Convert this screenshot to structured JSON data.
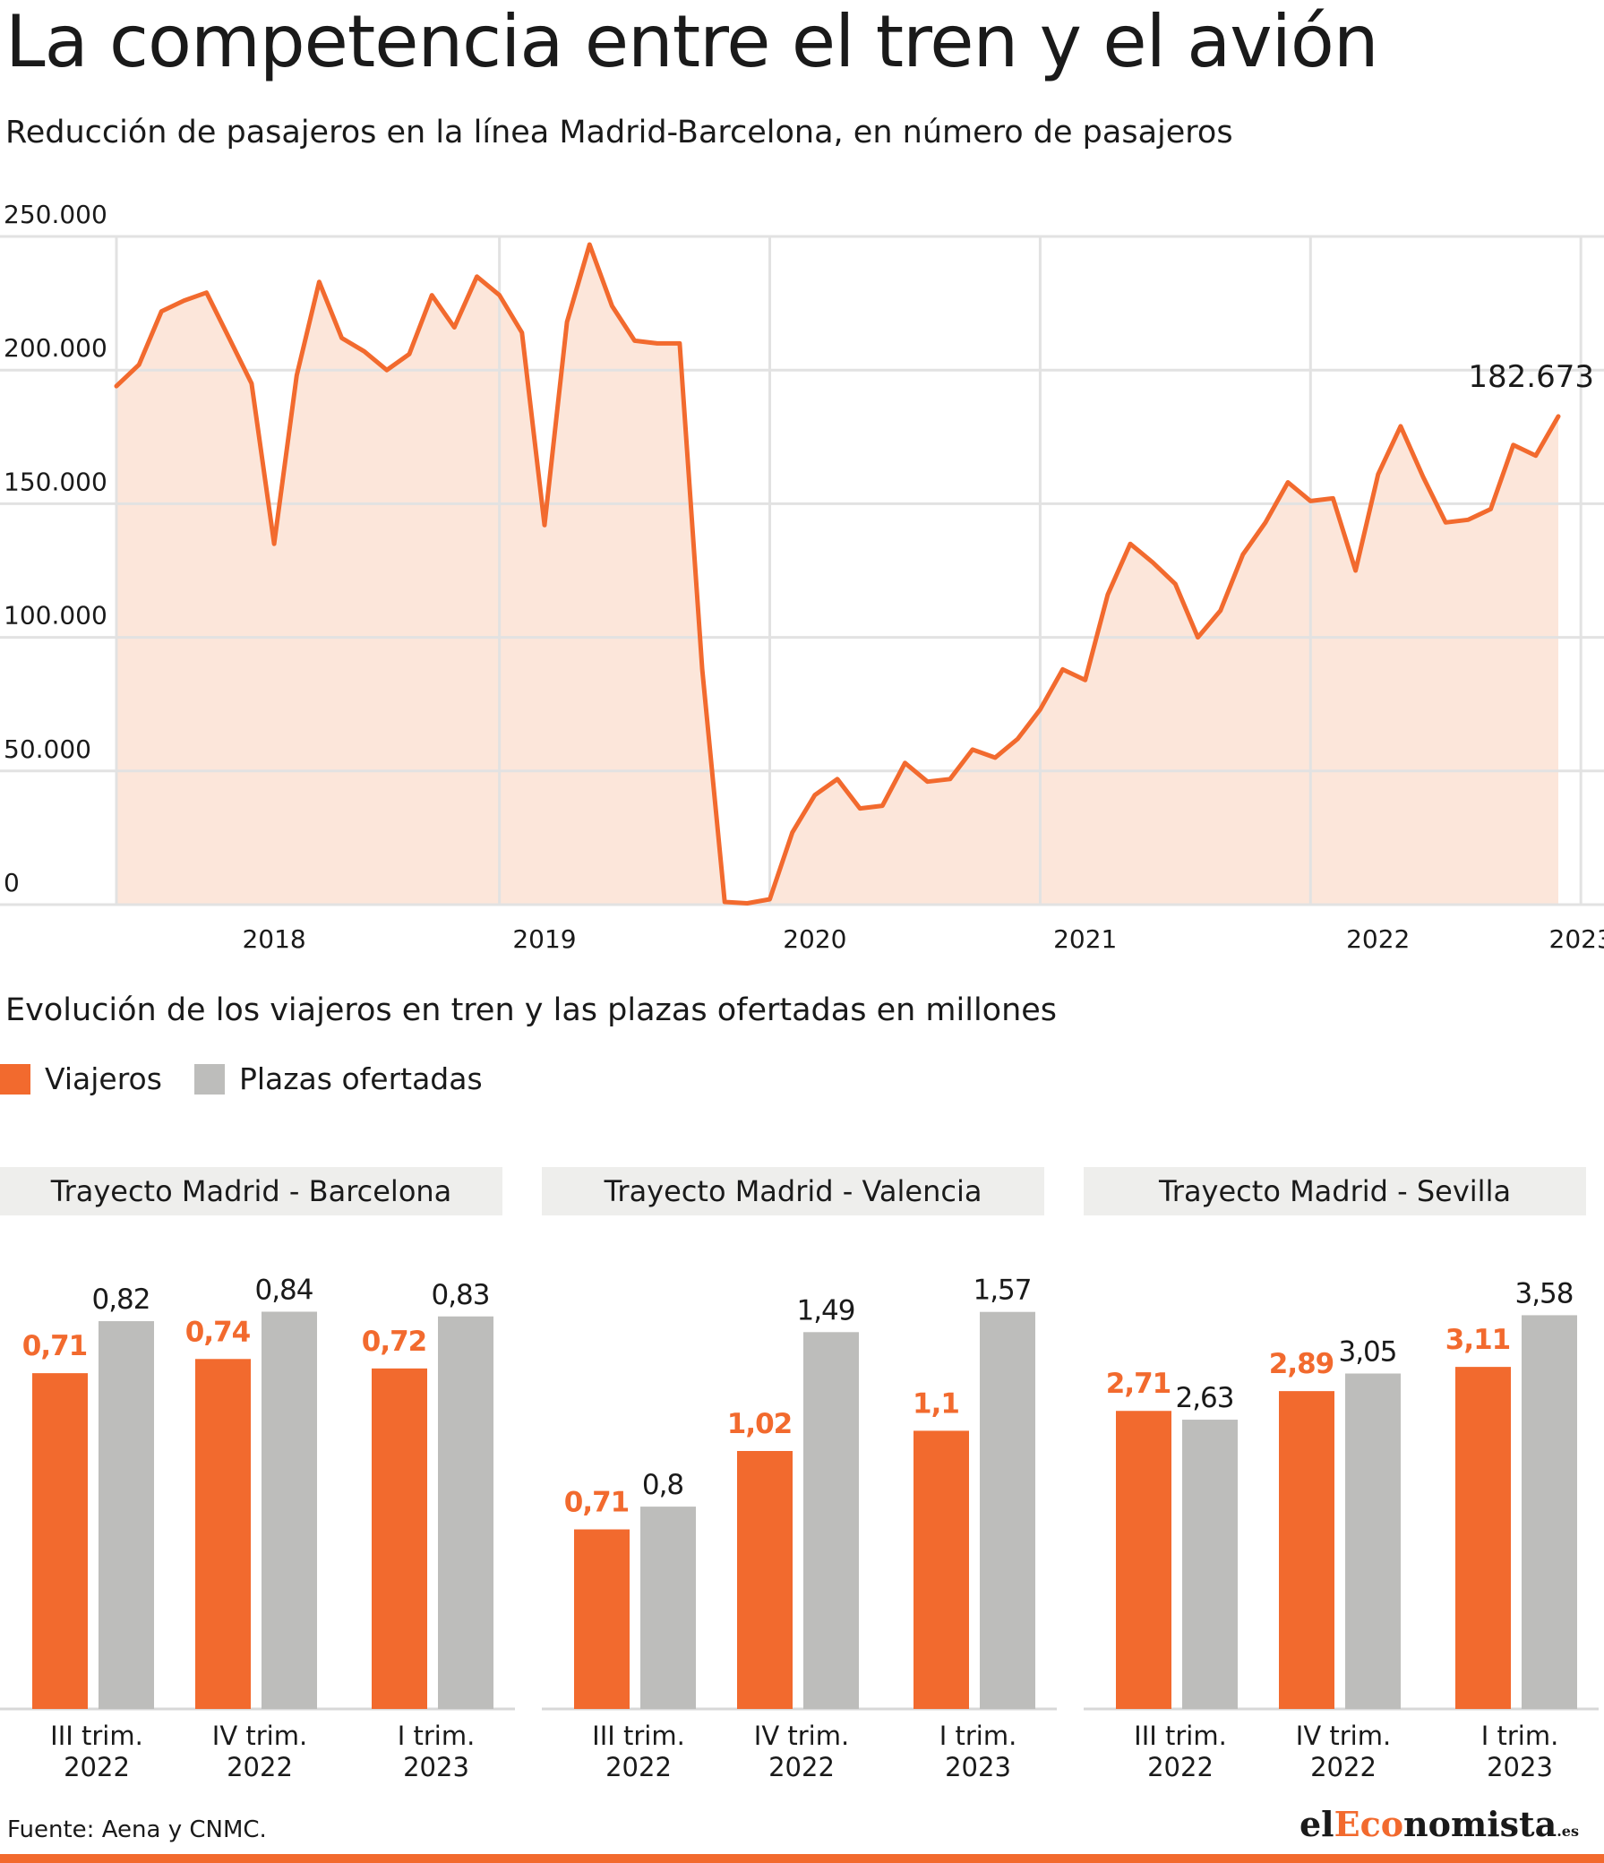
{
  "header": {
    "title": "La competencia entre el tren y el avión",
    "subtitle_line": "Reducción de pasajeros en la línea Madrid-Barcelona, en número de pasajeros",
    "subtitle_bars": "Evolución de los viajeros en tren y las plazas ofertadas en millones"
  },
  "legend": {
    "viajeros": "Viajeros",
    "plazas": "Plazas ofertadas"
  },
  "colors": {
    "orange": "#f26a2e",
    "gray": "#bdbdbb",
    "area_fill": "#fce6da"
  },
  "footer": {
    "source": "Fuente: Aena y CNMC.",
    "logo_el": "el",
    "logo_e": "E",
    "logo_co": "co",
    "logo_rest": "nomista",
    "logo_tld": ".es"
  },
  "chart_data": [
    {
      "type": "area",
      "title": "Reducción de pasajeros en la línea Madrid-Barcelona, en número de pasajeros",
      "ylim": [
        0,
        250000
      ],
      "yticks": [
        0,
        50000,
        100000,
        150000,
        200000,
        250000
      ],
      "ytick_labels": [
        "0",
        "50.000",
        "100.000",
        "150.000",
        "200.000",
        "250.000"
      ],
      "x_start": "2017-08",
      "x_labels": [
        "2018",
        "2019",
        "2020",
        "2021",
        "2022",
        "2023"
      ],
      "x_label_months": [
        "2018-03",
        "2019-03",
        "2020-03",
        "2021-03",
        "2022-04",
        "2023-01"
      ],
      "grid_months": [
        "2017-08",
        "2019-01",
        "2020-01",
        "2021-01",
        "2022-01",
        "2023-01"
      ],
      "annotation": {
        "text": "182.673",
        "value": 182673
      },
      "values": [
        194000,
        202000,
        222000,
        226000,
        229000,
        212000,
        195000,
        135000,
        198000,
        233000,
        212000,
        207000,
        200000,
        206000,
        228000,
        216000,
        235000,
        228000,
        214000,
        142000,
        218000,
        247000,
        224000,
        211000,
        210000,
        210000,
        88000,
        1000,
        500,
        2000,
        27000,
        41000,
        47000,
        36000,
        37000,
        53000,
        46000,
        47000,
        58000,
        55000,
        62000,
        73000,
        88000,
        84000,
        116000,
        135000,
        128000,
        120000,
        100000,
        110000,
        131000,
        143000,
        158000,
        151000,
        152000,
        125000,
        161000,
        179000,
        160000,
        143000,
        144000,
        148000,
        172000,
        168000,
        182673
      ]
    },
    {
      "type": "bar",
      "title": "Trayecto Madrid - Barcelona",
      "categories": [
        "III trim. 2022",
        "IV trim. 2022",
        "I trim. 2023"
      ],
      "category_lines": [
        [
          "III trim.",
          "2022"
        ],
        [
          "IV trim.",
          "2022"
        ],
        [
          "I trim.",
          "2023"
        ]
      ],
      "series": [
        {
          "name": "Viajeros",
          "values": [
            0.71,
            0.74,
            0.72
          ],
          "labels": [
            "0,71",
            "0,74",
            "0,72"
          ]
        },
        {
          "name": "Plazas ofertadas",
          "values": [
            0.82,
            0.84,
            0.83
          ],
          "labels": [
            "0,82",
            "0,84",
            "0,83"
          ]
        }
      ],
      "ylim": [
        0,
        1.0
      ]
    },
    {
      "type": "bar",
      "title": "Trayecto Madrid - Valencia",
      "categories": [
        "III trim. 2022",
        "IV trim. 2022",
        "I trim. 2023"
      ],
      "category_lines": [
        [
          "III trim.",
          "2022"
        ],
        [
          "IV trim.",
          "2022"
        ],
        [
          "I trim.",
          "2023"
        ]
      ],
      "series": [
        {
          "name": "Viajeros",
          "values": [
            0.71,
            1.02,
            1.1
          ],
          "labels": [
            "0,71",
            "1,02",
            "1,1"
          ]
        },
        {
          "name": "Plazas ofertadas",
          "values": [
            0.8,
            1.49,
            1.57
          ],
          "labels": [
            "0,8",
            "1,49",
            "1,57"
          ]
        }
      ],
      "ylim": [
        0,
        1.87
      ]
    },
    {
      "type": "bar",
      "title": "Trayecto Madrid - Sevilla",
      "categories": [
        "III trim. 2022",
        "IV trim. 2022",
        "I trim. 2023"
      ],
      "category_lines": [
        [
          "III trim.",
          "2022"
        ],
        [
          "IV trim.",
          "2022"
        ],
        [
          "I trim.",
          "2023"
        ]
      ],
      "series": [
        {
          "name": "Viajeros",
          "values": [
            2.71,
            2.89,
            3.11
          ],
          "labels": [
            "2,71",
            "2,89",
            "3,11"
          ]
        },
        {
          "name": "Plazas ofertadas",
          "values": [
            2.63,
            3.05,
            3.58
          ],
          "labels": [
            "2,63",
            "3,05",
            "3,58"
          ]
        }
      ],
      "ylim": [
        0,
        4.3
      ]
    }
  ]
}
